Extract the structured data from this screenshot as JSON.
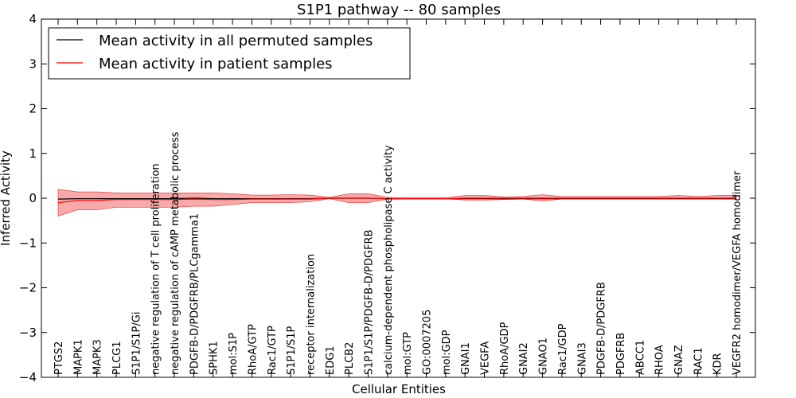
{
  "chart_data": {
    "type": "line",
    "title": "S1P1 pathway -- 80 samples",
    "xlabel": "Cellular Entities",
    "ylabel": "Inferred Activity",
    "ylim": [
      -4,
      4
    ],
    "yticks": [
      -4,
      -3,
      -2,
      -1,
      0,
      1,
      2,
      3,
      4
    ],
    "ytick_labels": [
      "−4",
      "−3",
      "−2",
      "−1",
      "0",
      "1",
      "2",
      "3",
      "4"
    ],
    "grid": false,
    "legend_location": "top-left",
    "categories": [
      "PTGS2",
      "MAPK1",
      "MAPK3",
      "PLCG1",
      "S1P1/S1P/Gi",
      "negative regulation of T cell proliferation",
      "negative regulation of cAMP metabolic process",
      "PDGFB-D/PDGFRB/PLCgamma1",
      "SPHK1",
      "mol:S1P",
      "RhoA/GTP",
      "Rac1/GTP",
      "S1P1/S1P",
      "receptor internalization",
      "EDG1",
      "PLCB2",
      "S1P1/S1P/PDGFB-D/PDGFRB",
      "calcium-dependent phospholipase C activity",
      "mol:GTP",
      "GO:0007205",
      "mol:GDP",
      "GNAI1",
      "VEGFA",
      "RhoA/GDP",
      "GNAI2",
      "GNAO1",
      "Rac1/GDP",
      "GNAI3",
      "PDGFB-D/PDGFRB",
      "PDGFRB",
      "ABCC1",
      "RHOA",
      "GNAZ",
      "RAC1",
      "KDR",
      "VEGFR2 homodimer/VEGFA homodimer"
    ],
    "series": [
      {
        "name": "Mean activity in all permuted samples",
        "color": "#000000",
        "values": [
          -0.02,
          -0.01,
          -0.01,
          -0.01,
          -0.01,
          -0.01,
          -0.01,
          0.0,
          -0.01,
          -0.01,
          -0.01,
          -0.01,
          -0.01,
          -0.01,
          0.0,
          0.0,
          0.0,
          -0.01,
          -0.01,
          -0.01,
          -0.01,
          -0.01,
          -0.01,
          -0.01,
          -0.01,
          -0.01,
          -0.01,
          -0.01,
          -0.01,
          -0.01,
          -0.01,
          -0.01,
          -0.01,
          -0.01,
          -0.01,
          -0.01
        ]
      },
      {
        "name": "Mean activity in patient samples",
        "color": "#ff0000",
        "values": [
          -0.1,
          -0.05,
          -0.05,
          -0.03,
          -0.03,
          -0.03,
          -0.03,
          -0.02,
          -0.03,
          -0.03,
          -0.02,
          -0.02,
          -0.02,
          -0.02,
          0.0,
          0.0,
          0.0,
          -0.01,
          -0.01,
          -0.01,
          -0.01,
          0.0,
          0.0,
          0.0,
          0.0,
          0.0,
          0.0,
          0.0,
          0.0,
          0.0,
          0.0,
          0.0,
          0.0,
          0.0,
          0.0,
          0.0
        ],
        "band_upper": [
          0.2,
          0.14,
          0.14,
          0.12,
          0.12,
          0.12,
          0.12,
          0.12,
          0.12,
          0.1,
          0.07,
          0.07,
          0.08,
          0.07,
          0.02,
          0.1,
          0.1,
          0.02,
          0.01,
          0.01,
          0.01,
          0.06,
          0.06,
          0.03,
          0.04,
          0.08,
          0.04,
          0.04,
          0.04,
          0.04,
          0.04,
          0.04,
          0.06,
          0.04,
          0.06,
          0.07
        ],
        "band_lower": [
          -0.4,
          -0.26,
          -0.26,
          -0.2,
          -0.2,
          -0.2,
          -0.2,
          -0.18,
          -0.18,
          -0.14,
          -0.1,
          -0.1,
          -0.1,
          -0.08,
          -0.01,
          -0.1,
          -0.1,
          -0.02,
          -0.01,
          -0.01,
          -0.01,
          -0.04,
          -0.04,
          -0.03,
          -0.02,
          -0.06,
          -0.02,
          -0.02,
          -0.02,
          -0.02,
          -0.02,
          -0.02,
          -0.02,
          -0.02,
          -0.02,
          -0.02
        ]
      }
    ]
  }
}
